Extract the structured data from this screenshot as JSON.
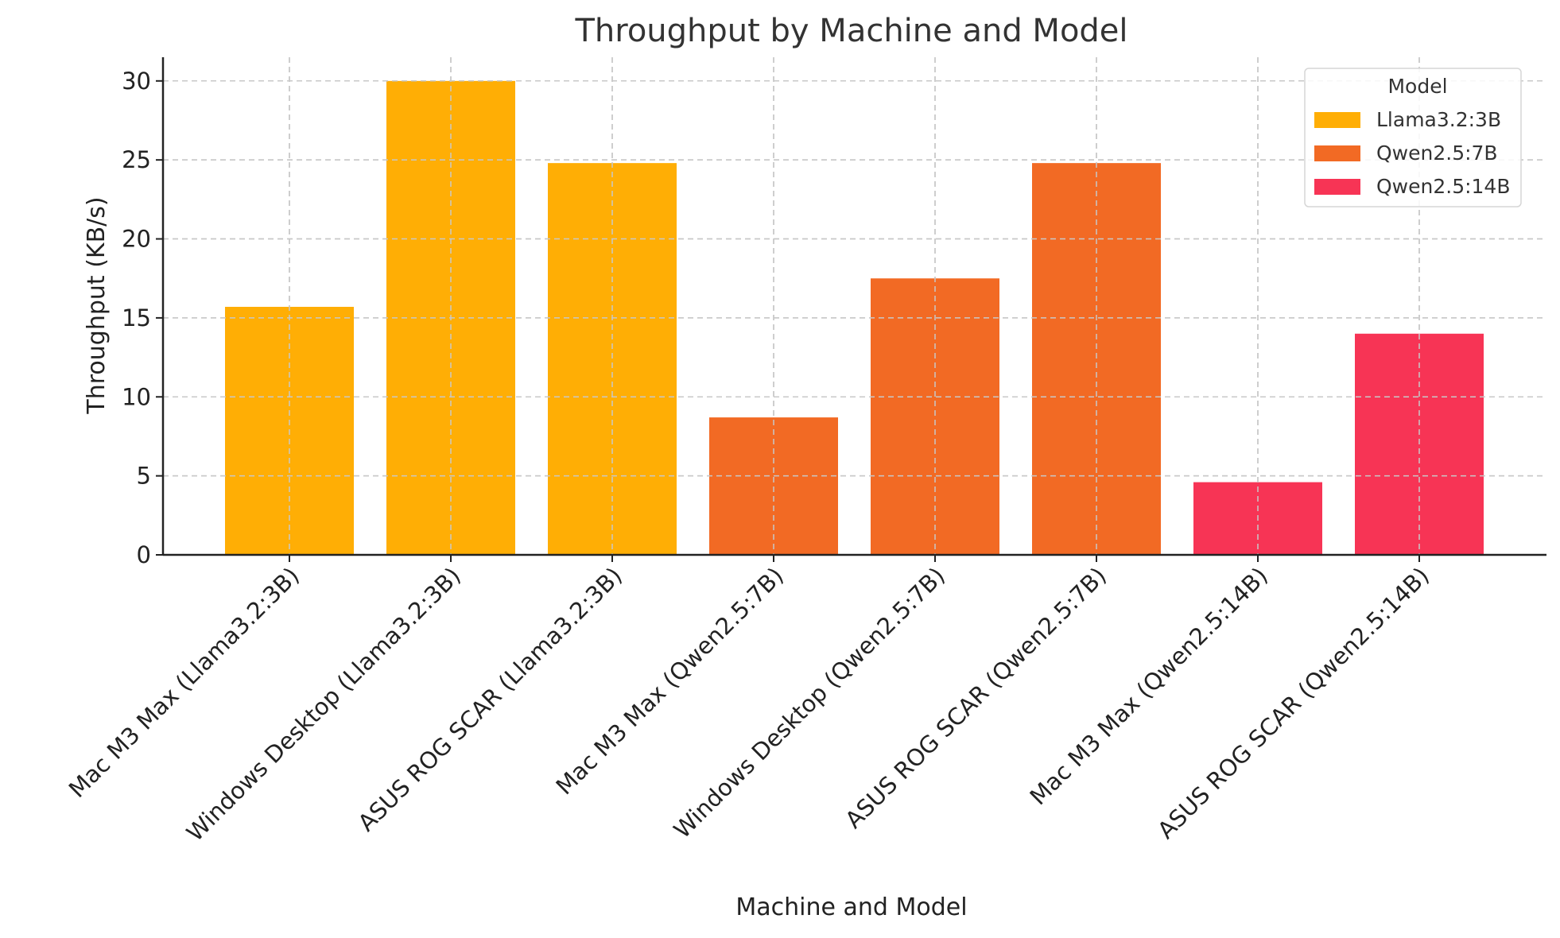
{
  "chart_data": {
    "type": "bar",
    "title": "Throughput by Machine and Model",
    "xlabel": "Machine and Model",
    "ylabel": "Throughput (KB/s)",
    "ylim": [
      0,
      31.5
    ],
    "yticks": [
      0,
      5,
      10,
      15,
      20,
      25,
      30
    ],
    "grid": true,
    "legend": {
      "title": "Model",
      "placement": "top-right",
      "entries": [
        {
          "label": "Llama3.2:3B",
          "color": "#FFAE05"
        },
        {
          "label": "Qwen2.5:7B",
          "color": "#F26A24"
        },
        {
          "label": "Qwen2.5:14B",
          "color": "#F73455"
        }
      ]
    },
    "categories": [
      "Mac M3 Max (Llama3.2:3B)",
      "Windows Desktop (Llama3.2:3B)",
      "ASUS ROG SCAR (Llama3.2:3B)",
      "Mac M3 Max (Qwen2.5:7B)",
      "Windows Desktop (Qwen2.5:7B)",
      "ASUS ROG SCAR (Qwen2.5:7B)",
      "Mac M3 Max (Qwen2.5:14B)",
      "ASUS ROG SCAR (Qwen2.5:14B)"
    ],
    "values": [
      15.7,
      30.0,
      24.8,
      8.7,
      17.5,
      24.8,
      4.6,
      14.0
    ],
    "bar_series": [
      "Llama3.2:3B",
      "Llama3.2:3B",
      "Llama3.2:3B",
      "Qwen2.5:7B",
      "Qwen2.5:7B",
      "Qwen2.5:7B",
      "Qwen2.5:14B",
      "Qwen2.5:14B"
    ]
  }
}
